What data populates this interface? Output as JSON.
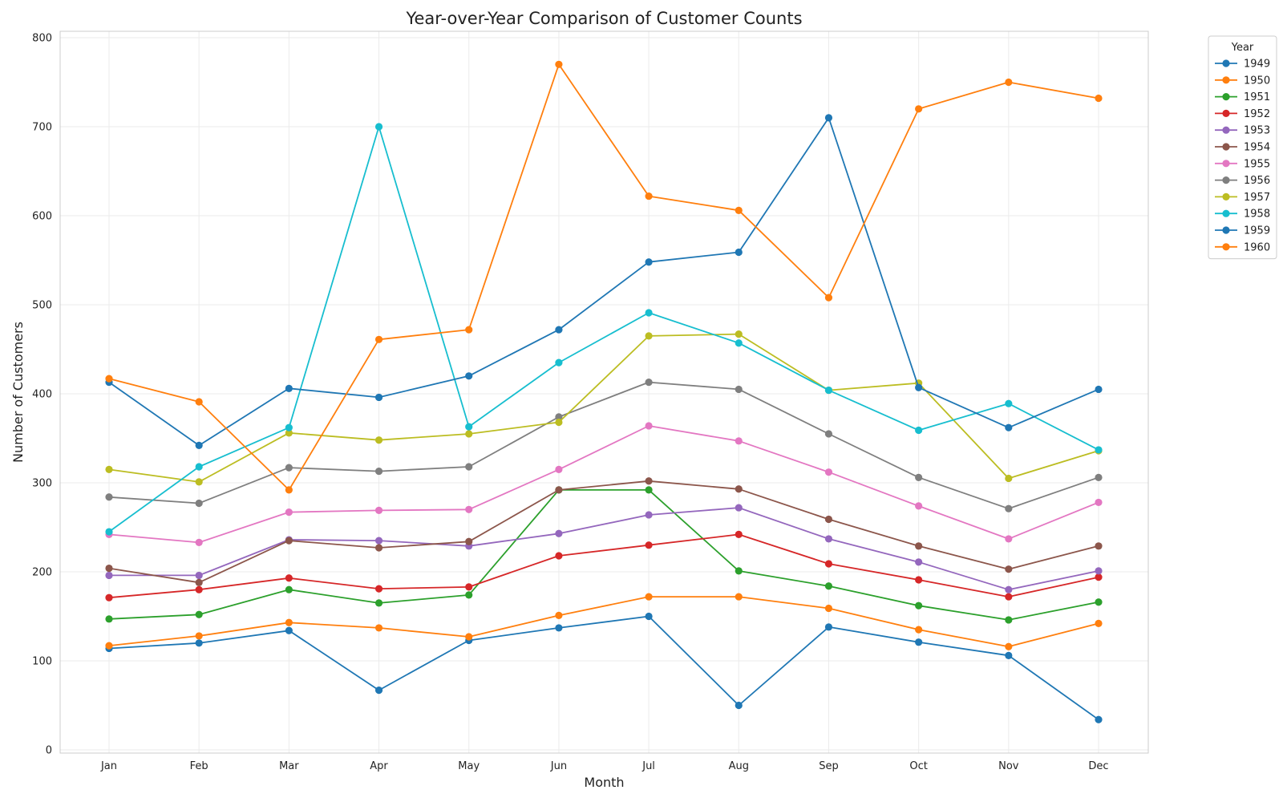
{
  "chart_data": {
    "type": "line",
    "title": "Year-over-Year Comparison of Customer Counts",
    "xlabel": "Month",
    "ylabel": "Number of Customers",
    "ylim": [
      0,
      800
    ],
    "yticks": [
      0,
      100,
      200,
      300,
      400,
      500,
      600,
      700,
      800
    ],
    "grid": true,
    "legend_title": "Year",
    "legend_placement": "outside top-right",
    "categories": [
      "Jan",
      "Feb",
      "Mar",
      "Apr",
      "May",
      "Jun",
      "Jul",
      "Aug",
      "Sep",
      "Oct",
      "Nov",
      "Dec"
    ],
    "series": [
      {
        "name": "1949",
        "color": "#1f77b4",
        "values": [
          114,
          120,
          134,
          67,
          123,
          137,
          150,
          50,
          138,
          121,
          106,
          34
        ]
      },
      {
        "name": "1950",
        "color": "#ff7f0e",
        "values": [
          117,
          128,
          143,
          137,
          127,
          151,
          172,
          172,
          159,
          135,
          116,
          142
        ]
      },
      {
        "name": "1951",
        "color": "#2ca02c",
        "values": [
          147,
          152,
          180,
          165,
          174,
          292,
          292,
          201,
          184,
          162,
          146,
          166
        ]
      },
      {
        "name": "1952",
        "color": "#d62728",
        "values": [
          171,
          180,
          193,
          181,
          183,
          218,
          230,
          242,
          209,
          191,
          172,
          194
        ]
      },
      {
        "name": "1953",
        "color": "#9467bd",
        "values": [
          196,
          196,
          236,
          235,
          229,
          243,
          264,
          272,
          237,
          211,
          180,
          201
        ]
      },
      {
        "name": "1954",
        "color": "#8c564b",
        "values": [
          204,
          188,
          235,
          227,
          234,
          292,
          302,
          293,
          259,
          229,
          203,
          229
        ]
      },
      {
        "name": "1955",
        "color": "#e377c2",
        "values": [
          242,
          233,
          267,
          269,
          270,
          315,
          364,
          347,
          312,
          274,
          237,
          278
        ]
      },
      {
        "name": "1956",
        "color": "#7f7f7f",
        "values": [
          284,
          277,
          317,
          313,
          318,
          374,
          413,
          405,
          355,
          306,
          271,
          306
        ]
      },
      {
        "name": "1957",
        "color": "#bcbd22",
        "values": [
          315,
          301,
          356,
          348,
          355,
          368,
          465,
          467,
          404,
          412,
          305,
          336
        ]
      },
      {
        "name": "1958",
        "color": "#17becf",
        "values": [
          245,
          318,
          362,
          700,
          363,
          435,
          491,
          457,
          404,
          359,
          389,
          337
        ]
      },
      {
        "name": "1959",
        "color": "#1f77b4",
        "values": [
          413,
          342,
          406,
          396,
          420,
          472,
          548,
          559,
          710,
          407,
          362,
          405
        ]
      },
      {
        "name": "1960",
        "color": "#ff7f0e",
        "values": [
          417,
          391,
          292,
          461,
          472,
          770,
          622,
          606,
          508,
          720,
          750,
          732
        ]
      }
    ]
  }
}
